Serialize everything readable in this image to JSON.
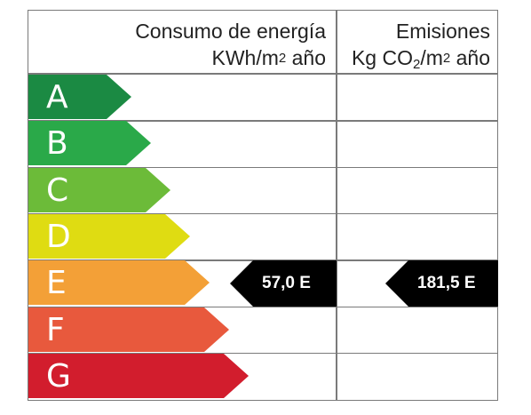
{
  "header": {
    "energy_line1": "Consumo de energía",
    "energy_line2_pre": "KWh/m",
    "energy_line2_sup": "2",
    "energy_line2_post": " año",
    "emissions_line1": "Emisiones",
    "emissions_line2_pre": "Kg CO",
    "emissions_line2_sub": "2",
    "emissions_line2_mid": "/m",
    "emissions_line2_sup": "2",
    "emissions_line2_post": " año"
  },
  "bands": [
    {
      "letter": "A",
      "color": "#1b8a43"
    },
    {
      "letter": "B",
      "color": "#2aa949"
    },
    {
      "letter": "C",
      "color": "#6cbb39"
    },
    {
      "letter": "D",
      "color": "#dfdc12"
    },
    {
      "letter": "E",
      "color": "#f3a037"
    },
    {
      "letter": "F",
      "color": "#e8593d"
    },
    {
      "letter": "G",
      "color": "#d21d2d"
    }
  ],
  "energy_rating": {
    "value": "57,0 E",
    "band": "E"
  },
  "emissions_rating": {
    "value": "181,5 E",
    "band": "E"
  },
  "marker_color": "#000000"
}
